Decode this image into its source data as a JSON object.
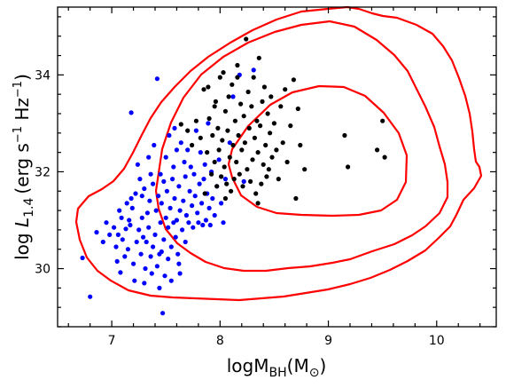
{
  "chart_data": {
    "type": "scatter",
    "xlabel": {
      "main": "logM",
      "sub": "BH",
      "unit_open": "(M",
      "unit_sub": "⊙",
      "unit_close": ")"
    },
    "ylabel": {
      "log": "log ",
      "L": "L",
      "sub": "1.4",
      "unit": "(erg s",
      "exp1": "−1",
      "mid": " Hz",
      "exp2": "−1",
      "close": ")"
    },
    "xlim": [
      6.5,
      10.55
    ],
    "ylim": [
      28.8,
      35.4
    ],
    "x_ticks": [
      7,
      8,
      9,
      10
    ],
    "y_ticks": [
      30,
      32,
      34
    ],
    "x_tick_labels": [
      "7",
      "8",
      "9",
      "10"
    ],
    "y_tick_labels": [
      "30",
      "32",
      "34"
    ],
    "grid": false,
    "colors": {
      "series_a": "#0000ff",
      "series_b": "#000000",
      "contour": "#ff0000"
    },
    "series": [
      {
        "color": "#0000ff",
        "points": [
          [
            6.73,
            30.22
          ],
          [
            6.8,
            29.42
          ],
          [
            6.86,
            30.75
          ],
          [
            6.92,
            30.55
          ],
          [
            6.95,
            30.95
          ],
          [
            6.98,
            30.7
          ],
          [
            7.02,
            30.85
          ],
          [
            7.04,
            30.45
          ],
          [
            7.05,
            30.15
          ],
          [
            7.06,
            30.7
          ],
          [
            7.08,
            29.92
          ],
          [
            7.09,
            31.05
          ],
          [
            7.1,
            30.6
          ],
          [
            7.12,
            30.25
          ],
          [
            7.13,
            30.82
          ],
          [
            7.14,
            31.35
          ],
          [
            7.15,
            30.4
          ],
          [
            7.16,
            31.0
          ],
          [
            7.17,
            30.9
          ],
          [
            7.18,
            33.22
          ],
          [
            7.19,
            31.25
          ],
          [
            7.2,
            30.1
          ],
          [
            7.21,
            29.75
          ],
          [
            7.22,
            31.55
          ],
          [
            7.23,
            30.55
          ],
          [
            7.24,
            32.15
          ],
          [
            7.25,
            30.8
          ],
          [
            7.26,
            31.85
          ],
          [
            7.27,
            30.3
          ],
          [
            7.28,
            31.05
          ],
          [
            7.29,
            30.65
          ],
          [
            7.3,
            29.7
          ],
          [
            7.3,
            31.65
          ],
          [
            7.31,
            30.0
          ],
          [
            7.32,
            30.55
          ],
          [
            7.33,
            31.15
          ],
          [
            7.34,
            30.85
          ],
          [
            7.35,
            31.4
          ],
          [
            7.36,
            30.25
          ],
          [
            7.37,
            29.9
          ],
          [
            7.38,
            31.75
          ],
          [
            7.38,
            30.45
          ],
          [
            7.39,
            32.55
          ],
          [
            7.4,
            30.7
          ],
          [
            7.41,
            31.2
          ],
          [
            7.42,
            33.92
          ],
          [
            7.42,
            30.05
          ],
          [
            7.43,
            31.5
          ],
          [
            7.44,
            29.6
          ],
          [
            7.45,
            30.95
          ],
          [
            7.45,
            31.95
          ],
          [
            7.46,
            30.35
          ],
          [
            7.46,
            31.35
          ],
          [
            7.47,
            29.08
          ],
          [
            7.48,
            31.8
          ],
          [
            7.48,
            30.6
          ],
          [
            7.49,
            29.85
          ],
          [
            7.5,
            32.3
          ],
          [
            7.5,
            31.05
          ],
          [
            7.51,
            31.6
          ],
          [
            7.52,
            30.2
          ],
          [
            7.52,
            30.85
          ],
          [
            7.53,
            32.75
          ],
          [
            7.54,
            31.25
          ],
          [
            7.55,
            30.45
          ],
          [
            7.55,
            29.75
          ],
          [
            7.56,
            31.85
          ],
          [
            7.57,
            30.95
          ],
          [
            7.57,
            32.1
          ],
          [
            7.58,
            31.45
          ],
          [
            7.59,
            30.65
          ],
          [
            7.6,
            32.45
          ],
          [
            7.6,
            31.0
          ],
          [
            7.61,
            30.3
          ],
          [
            7.62,
            31.7
          ],
          [
            7.63,
            29.9
          ],
          [
            7.63,
            31.2
          ],
          [
            7.64,
            32.6
          ],
          [
            7.65,
            30.8
          ],
          [
            7.66,
            31.4
          ],
          [
            7.67,
            32.2
          ],
          [
            7.68,
            30.55
          ],
          [
            7.68,
            31.9
          ],
          [
            7.69,
            31.1
          ],
          [
            7.7,
            32.45
          ],
          [
            7.71,
            30.95
          ],
          [
            7.72,
            31.6
          ],
          [
            7.73,
            32.1
          ],
          [
            7.74,
            31.3
          ],
          [
            7.75,
            30.85
          ],
          [
            7.76,
            31.95
          ],
          [
            7.77,
            31.5
          ],
          [
            7.78,
            32.85
          ],
          [
            7.79,
            31.15
          ],
          [
            7.8,
            30.95
          ],
          [
            7.81,
            31.75
          ],
          [
            7.82,
            32.4
          ],
          [
            7.83,
            31.35
          ],
          [
            7.84,
            30.9
          ],
          [
            7.85,
            31.85
          ],
          [
            7.86,
            32.15
          ],
          [
            7.87,
            31.0
          ],
          [
            7.88,
            31.55
          ],
          [
            7.89,
            33.0
          ],
          [
            7.9,
            31.25
          ],
          [
            7.91,
            30.9
          ],
          [
            7.92,
            32.0
          ],
          [
            7.93,
            31.45
          ],
          [
            7.95,
            31.1
          ],
          [
            7.97,
            31.7
          ],
          [
            7.99,
            32.25
          ],
          [
            8.01,
            31.35
          ],
          [
            8.03,
            30.95
          ],
          [
            8.05,
            31.85
          ],
          [
            8.09,
            32.6
          ],
          [
            8.12,
            33.55
          ],
          [
            8.18,
            34.0
          ],
          [
            8.31,
            34.1
          ],
          [
            8.22,
            31.8
          ],
          [
            7.36,
            31.95
          ],
          [
            7.18,
            31.45
          ],
          [
            7.34,
            32.3
          ],
          [
            7.58,
            32.9
          ],
          [
            7.44,
            30.3
          ],
          [
            7.28,
            31.5
          ],
          [
            7.07,
            31.2
          ],
          [
            7.62,
            30.1
          ]
        ]
      },
      {
        "color": "#000000",
        "points": [
          [
            7.64,
            32.98
          ],
          [
            7.7,
            32.85
          ],
          [
            7.74,
            32.55
          ],
          [
            7.78,
            33.05
          ],
          [
            7.82,
            32.7
          ],
          [
            7.85,
            33.7
          ],
          [
            7.86,
            31.55
          ],
          [
            7.88,
            32.4
          ],
          [
            7.89,
            33.75
          ],
          [
            7.9,
            33.1
          ],
          [
            7.92,
            31.95
          ],
          [
            7.93,
            32.75
          ],
          [
            7.95,
            32.2
          ],
          [
            7.96,
            33.45
          ],
          [
            7.97,
            31.7
          ],
          [
            7.98,
            32.9
          ],
          [
            7.99,
            32.45
          ],
          [
            8.0,
            33.95
          ],
          [
            8.01,
            31.9
          ],
          [
            8.02,
            32.65
          ],
          [
            8.03,
            34.05
          ],
          [
            8.04,
            32.1
          ],
          [
            8.05,
            33.25
          ],
          [
            8.06,
            31.75
          ],
          [
            8.07,
            32.85
          ],
          [
            8.08,
            33.55
          ],
          [
            8.09,
            32.3
          ],
          [
            8.1,
            31.6
          ],
          [
            8.11,
            33.8
          ],
          [
            8.12,
            32.55
          ],
          [
            8.13,
            31.85
          ],
          [
            8.14,
            33.05
          ],
          [
            8.15,
            32.2
          ],
          [
            8.16,
            34.2
          ],
          [
            8.17,
            32.75
          ],
          [
            8.18,
            31.95
          ],
          [
            8.19,
            33.4
          ],
          [
            8.2,
            32.45
          ],
          [
            8.21,
            31.7
          ],
          [
            8.22,
            33.15
          ],
          [
            8.23,
            32.6
          ],
          [
            8.24,
            34.74
          ],
          [
            8.25,
            32.05
          ],
          [
            8.26,
            33.65
          ],
          [
            8.27,
            32.9
          ],
          [
            8.28,
            31.8
          ],
          [
            8.29,
            33.35
          ],
          [
            8.3,
            32.25
          ],
          [
            8.31,
            33.95
          ],
          [
            8.32,
            32.7
          ],
          [
            8.33,
            31.55
          ],
          [
            8.34,
            33.05
          ],
          [
            8.35,
            32.4
          ],
          [
            8.36,
            34.35
          ],
          [
            8.37,
            32.95
          ],
          [
            8.38,
            31.75
          ],
          [
            8.39,
            33.45
          ],
          [
            8.4,
            32.15
          ],
          [
            8.41,
            33.75
          ],
          [
            8.42,
            32.55
          ],
          [
            8.43,
            31.9
          ],
          [
            8.44,
            33.2
          ],
          [
            8.45,
            32.05
          ],
          [
            8.46,
            32.8
          ],
          [
            8.47,
            33.55
          ],
          [
            8.48,
            32.3
          ],
          [
            8.5,
            33.0
          ],
          [
            8.52,
            32.45
          ],
          [
            8.54,
            31.85
          ],
          [
            8.56,
            33.35
          ],
          [
            8.58,
            32.6
          ],
          [
            8.6,
            33.7
          ],
          [
            8.62,
            32.2
          ],
          [
            8.65,
            32.95
          ],
          [
            8.68,
            33.9
          ],
          [
            8.7,
            31.45
          ],
          [
            8.72,
            33.3
          ],
          [
            8.74,
            32.55
          ],
          [
            8.78,
            32.05
          ],
          [
            9.15,
            32.75
          ],
          [
            9.18,
            32.1
          ],
          [
            9.45,
            32.45
          ],
          [
            9.52,
            32.3
          ],
          [
            9.5,
            33.05
          ],
          [
            8.16,
            33.95
          ],
          [
            8.05,
            31.45
          ],
          [
            8.35,
            31.35
          ],
          [
            7.95,
            33.35
          ]
        ]
      }
    ]
  }
}
